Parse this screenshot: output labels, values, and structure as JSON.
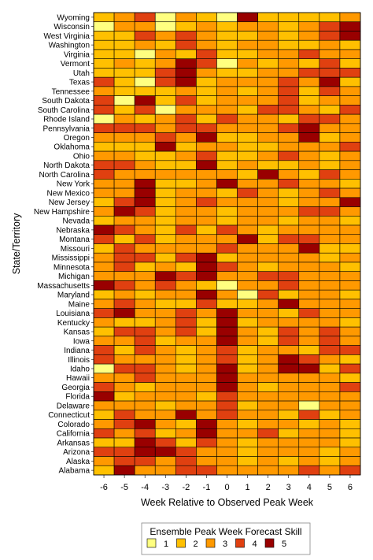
{
  "chart_data": {
    "type": "heatmap",
    "xlabel": "Week Relative to Observed Peak Week",
    "ylabel": "State/Territory",
    "x": [
      "-6",
      "-5",
      "-4",
      "-3",
      "-2",
      "-1",
      "0",
      "1",
      "2",
      "3",
      "4",
      "5",
      "6"
    ],
    "y": [
      "Wyoming",
      "Wisconsin",
      "West Virginia",
      "Washington",
      "Virginia",
      "Vermont",
      "Utah",
      "Texas",
      "Tennessee",
      "South Dakota",
      "South Carolina",
      "Rhode Island",
      "Pennsylvania",
      "Oregon",
      "Oklahoma",
      "Ohio",
      "North Dakota",
      "North Carolina",
      "New York",
      "New Mexico",
      "New Jersey",
      "New Hampshire",
      "Nevada",
      "Nebraska",
      "Montana",
      "Missouri",
      "Mississippi",
      "Minnesota",
      "Michigan",
      "Massachusetts",
      "Maryland",
      "Maine",
      "Louisiana",
      "Kentucky",
      "Kansas",
      "Iowa",
      "Indiana",
      "Illinois",
      "Idaho",
      "Hawaii",
      "Georgia",
      "Florida",
      "Delaware",
      "Connecticut",
      "Colorado",
      "California",
      "Arkansas",
      "Arizona",
      "Alaska",
      "Alabama"
    ],
    "z": [
      [
        2,
        3,
        4,
        1,
        3,
        2,
        1,
        5,
        2,
        2,
        2,
        2,
        3
      ],
      [
        1,
        3,
        3,
        1,
        2,
        3,
        2,
        3,
        3,
        2,
        3,
        4,
        5
      ],
      [
        2,
        2,
        4,
        3,
        4,
        3,
        2,
        2,
        3,
        2,
        3,
        4,
        5
      ],
      [
        2,
        2,
        3,
        2,
        4,
        3,
        2,
        3,
        3,
        2,
        2,
        3,
        2
      ],
      [
        2,
        2,
        1,
        3,
        2,
        4,
        2,
        2,
        3,
        3,
        4,
        3,
        3
      ],
      [
        2,
        3,
        2,
        3,
        5,
        4,
        1,
        3,
        2,
        3,
        2,
        4,
        2
      ],
      [
        2,
        2,
        2,
        4,
        5,
        3,
        2,
        2,
        3,
        3,
        4,
        4,
        4
      ],
      [
        4,
        2,
        1,
        4,
        5,
        2,
        3,
        3,
        3,
        4,
        3,
        5,
        2
      ],
      [
        3,
        2,
        2,
        2,
        3,
        2,
        3,
        2,
        3,
        4,
        2,
        4,
        3
      ],
      [
        4,
        1,
        5,
        2,
        4,
        2,
        3,
        3,
        3,
        4,
        2,
        3,
        3
      ],
      [
        4,
        2,
        4,
        1,
        3,
        3,
        3,
        2,
        4,
        4,
        3,
        2,
        4
      ],
      [
        1,
        3,
        2,
        3,
        4,
        2,
        4,
        3,
        3,
        2,
        4,
        4,
        3
      ],
      [
        4,
        4,
        4,
        3,
        4,
        4,
        3,
        3,
        3,
        4,
        5,
        3,
        3
      ],
      [
        3,
        3,
        3,
        4,
        3,
        5,
        2,
        2,
        3,
        3,
        5,
        2,
        3
      ],
      [
        2,
        2,
        2,
        5,
        2,
        3,
        3,
        2,
        2,
        3,
        3,
        3,
        4
      ],
      [
        3,
        3,
        2,
        2,
        3,
        4,
        2,
        2,
        3,
        4,
        3,
        2,
        3
      ],
      [
        4,
        4,
        3,
        2,
        2,
        5,
        2,
        3,
        2,
        2,
        3,
        2,
        3
      ],
      [
        4,
        3,
        3,
        3,
        3,
        3,
        3,
        2,
        5,
        3,
        2,
        4,
        3
      ],
      [
        3,
        3,
        5,
        2,
        2,
        3,
        5,
        3,
        3,
        4,
        3,
        3,
        2
      ],
      [
        3,
        3,
        5,
        2,
        3,
        3,
        2,
        4,
        3,
        2,
        3,
        4,
        3
      ],
      [
        2,
        4,
        5,
        2,
        3,
        4,
        3,
        3,
        3,
        2,
        3,
        3,
        5
      ],
      [
        3,
        5,
        4,
        2,
        3,
        3,
        2,
        3,
        3,
        3,
        4,
        4,
        3
      ],
      [
        2,
        3,
        3,
        2,
        3,
        3,
        2,
        3,
        3,
        2,
        3,
        3,
        2
      ],
      [
        5,
        4,
        3,
        2,
        4,
        2,
        4,
        3,
        2,
        3,
        3,
        3,
        3
      ],
      [
        4,
        2,
        4,
        2,
        3,
        3,
        3,
        5,
        2,
        4,
        4,
        3,
        3
      ],
      [
        2,
        4,
        3,
        3,
        3,
        3,
        4,
        3,
        3,
        3,
        5,
        2,
        2
      ],
      [
        3,
        4,
        4,
        2,
        4,
        5,
        2,
        3,
        3,
        3,
        3,
        2,
        3
      ],
      [
        3,
        4,
        2,
        3,
        2,
        5,
        4,
        3,
        2,
        3,
        3,
        3,
        2
      ],
      [
        3,
        3,
        3,
        5,
        4,
        5,
        3,
        3,
        4,
        4,
        3,
        3,
        3
      ],
      [
        5,
        4,
        3,
        4,
        3,
        2,
        1,
        3,
        3,
        4,
        3,
        3,
        3
      ],
      [
        2,
        3,
        2,
        3,
        3,
        5,
        3,
        1,
        4,
        2,
        3,
        3,
        2
      ],
      [
        3,
        4,
        3,
        2,
        2,
        4,
        2,
        2,
        3,
        5,
        3,
        3,
        3
      ],
      [
        4,
        5,
        3,
        3,
        4,
        3,
        5,
        3,
        3,
        2,
        4,
        3,
        3
      ],
      [
        3,
        2,
        2,
        3,
        4,
        2,
        5,
        2,
        3,
        3,
        3,
        3,
        2
      ],
      [
        2,
        4,
        4,
        3,
        4,
        2,
        5,
        3,
        2,
        4,
        3,
        4,
        3
      ],
      [
        3,
        3,
        4,
        2,
        3,
        3,
        5,
        3,
        2,
        4,
        3,
        4,
        3
      ],
      [
        4,
        2,
        4,
        3,
        2,
        3,
        4,
        2,
        3,
        3,
        2,
        4,
        4
      ],
      [
        4,
        3,
        3,
        3,
        2,
        3,
        4,
        2,
        3,
        5,
        4,
        3,
        2
      ],
      [
        1,
        4,
        4,
        3,
        2,
        3,
        5,
        2,
        3,
        5,
        5,
        2,
        4
      ],
      [
        3,
        3,
        4,
        3,
        3,
        3,
        5,
        3,
        3,
        3,
        3,
        3,
        2
      ],
      [
        4,
        3,
        2,
        3,
        3,
        3,
        5,
        3,
        2,
        3,
        3,
        3,
        4
      ],
      [
        5,
        2,
        3,
        3,
        3,
        2,
        4,
        3,
        3,
        3,
        3,
        3,
        3
      ],
      [
        3,
        3,
        3,
        2,
        3,
        3,
        4,
        2,
        3,
        3,
        1,
        3,
        3
      ],
      [
        2,
        4,
        3,
        3,
        5,
        3,
        4,
        3,
        3,
        2,
        4,
        2,
        3
      ],
      [
        3,
        4,
        5,
        3,
        2,
        5,
        3,
        2,
        3,
        3,
        2,
        3,
        2
      ],
      [
        4,
        3,
        4,
        2,
        3,
        5,
        3,
        3,
        4,
        2,
        3,
        3,
        2
      ],
      [
        2,
        2,
        5,
        4,
        2,
        4,
        3,
        2,
        3,
        3,
        3,
        3,
        2
      ],
      [
        4,
        4,
        5,
        5,
        4,
        3,
        3,
        2,
        3,
        3,
        3,
        2,
        3
      ],
      [
        3,
        4,
        4,
        3,
        4,
        3,
        3,
        2,
        3,
        2,
        3,
        2,
        3
      ],
      [
        2,
        5,
        3,
        3,
        4,
        4,
        3,
        3,
        3,
        3,
        4,
        3,
        4
      ]
    ],
    "legend": {
      "title": "Ensemble Peak Week Forecast Skill",
      "levels": [
        "1",
        "2",
        "3",
        "4",
        "5"
      ],
      "colors": [
        "#ffff80",
        "#ffc000",
        "#ff9900",
        "#e04010",
        "#990000"
      ],
      "position": "bottom-center"
    },
    "grid": false
  }
}
